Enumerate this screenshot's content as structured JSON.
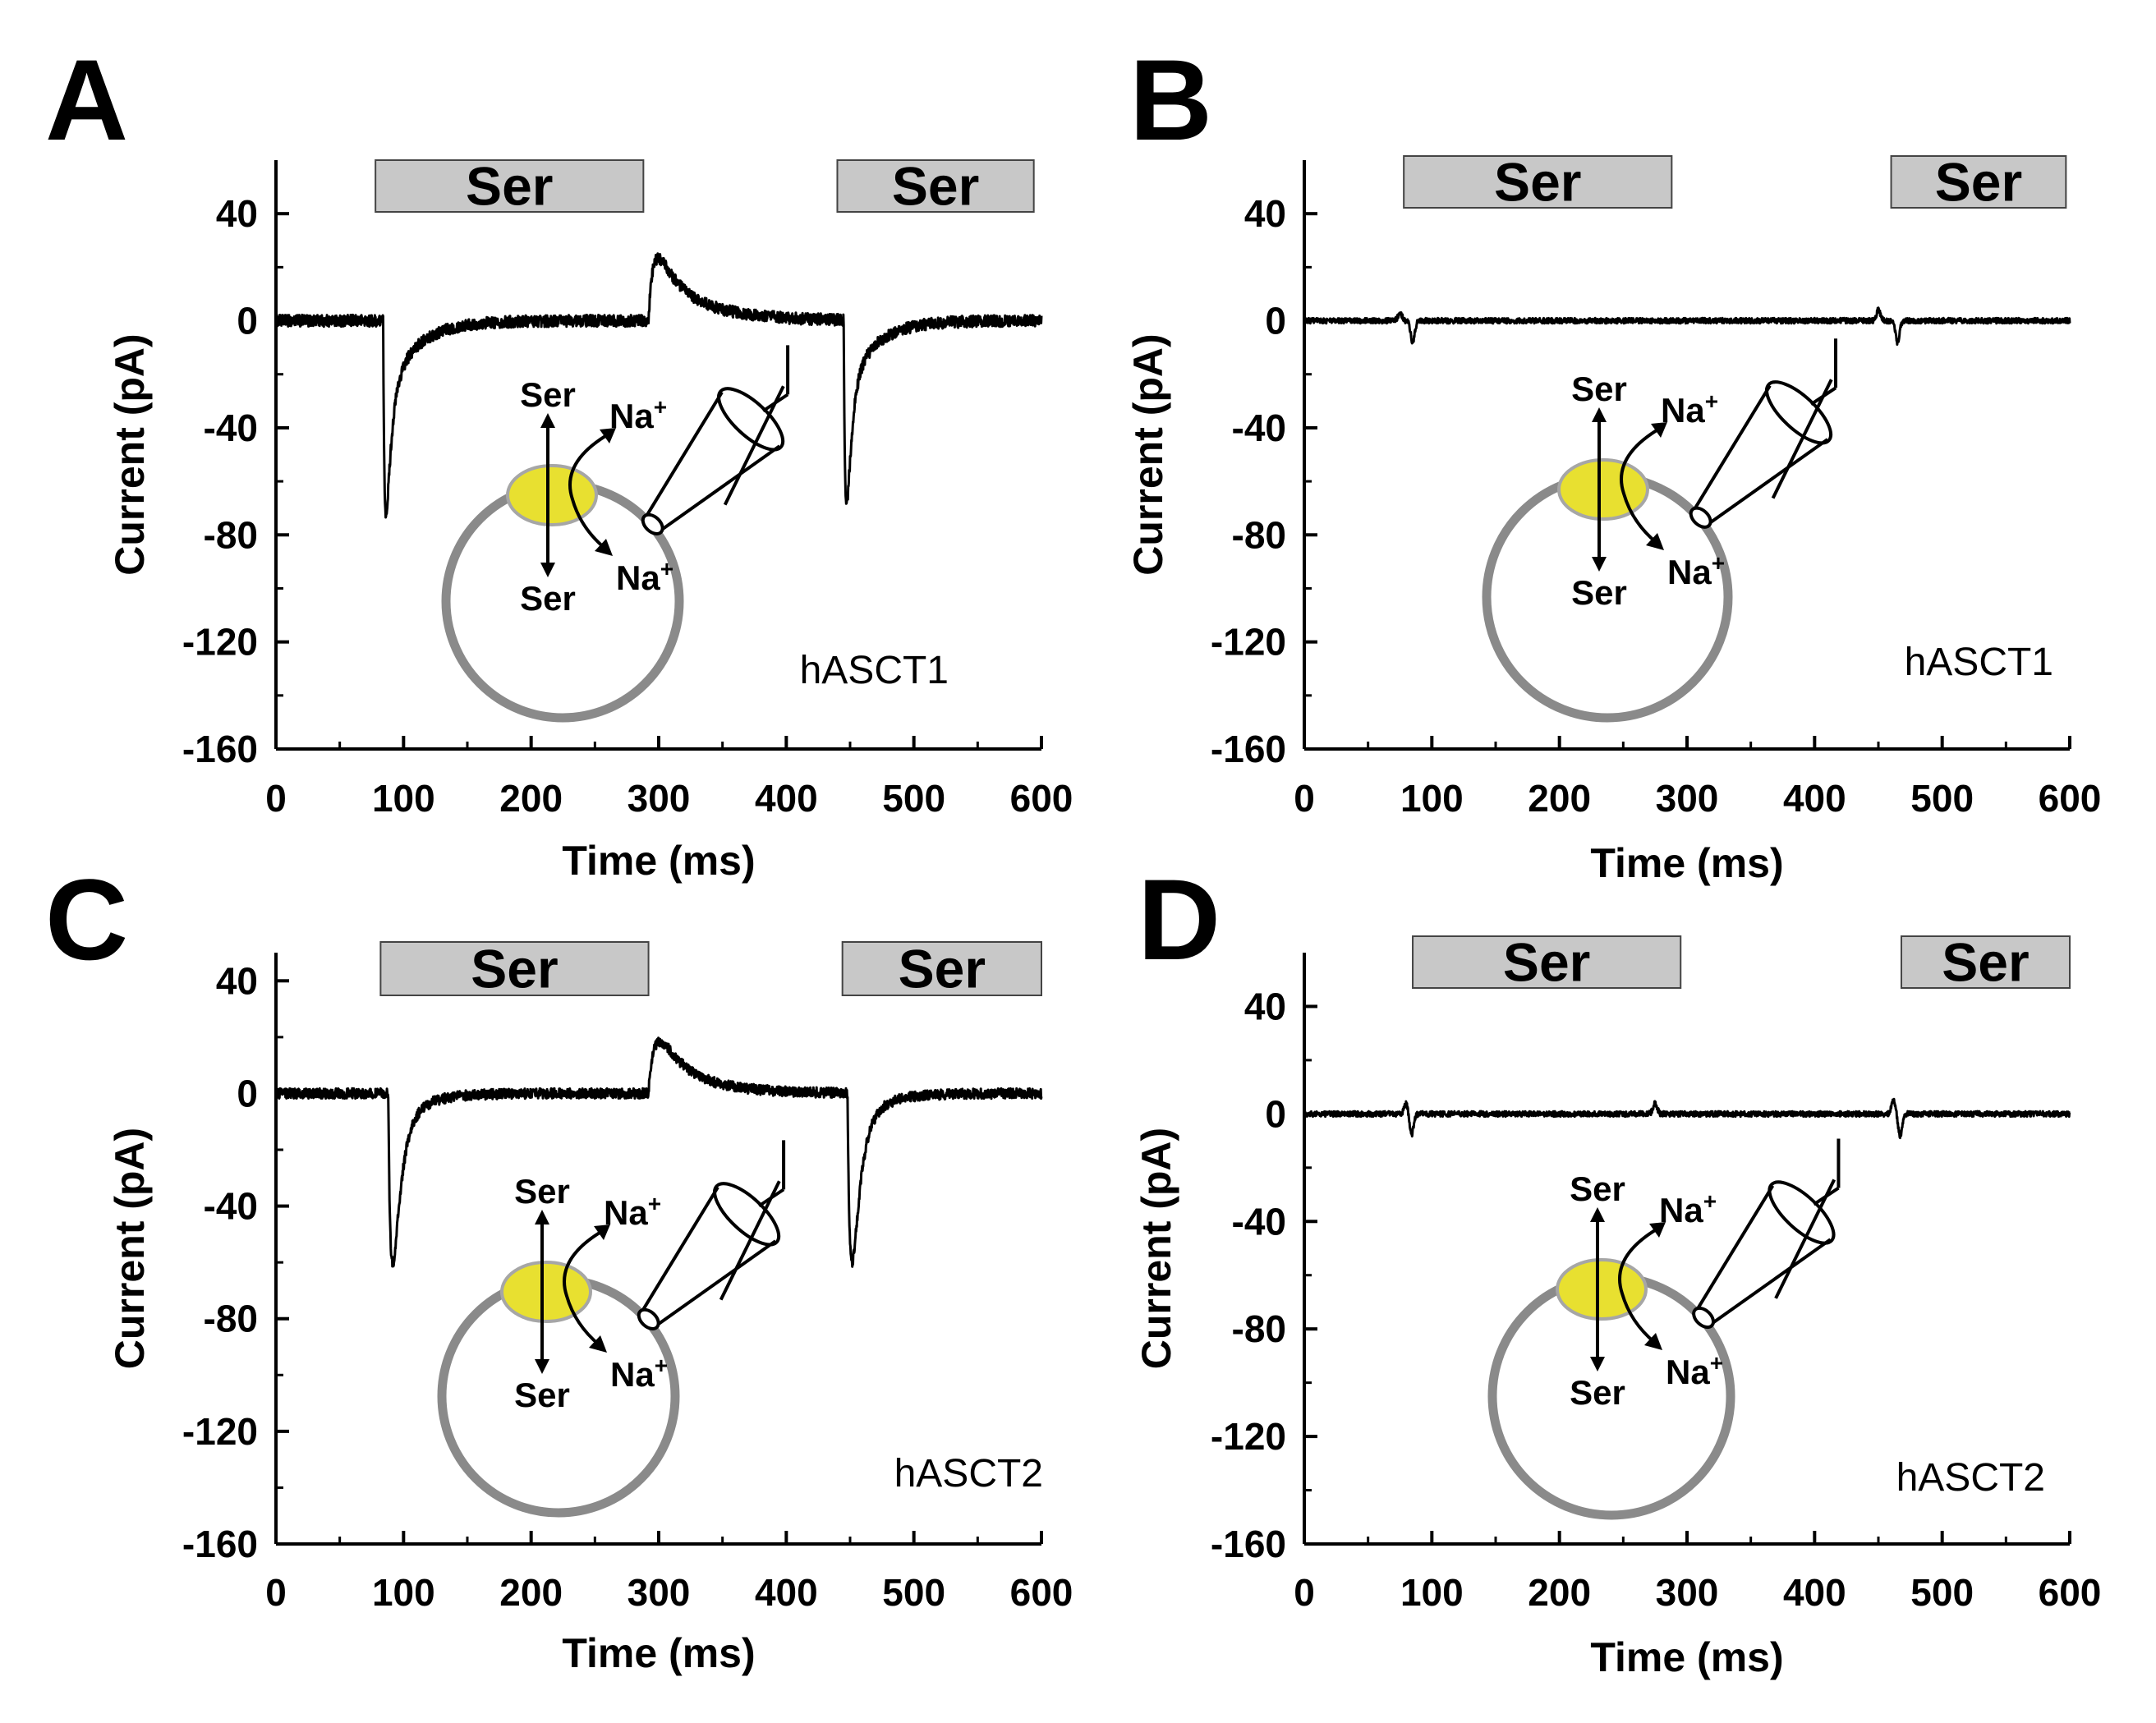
{
  "figure": {
    "colors": {
      "trace": "#000000",
      "bar_fill": "#c8c8c8",
      "bar_stroke": "#444444",
      "cell": "#8a8a8a",
      "transporter": "#e8e030",
      "transporter_stroke": "#a6a6a6",
      "axis": "#000000"
    }
  },
  "chart_data": [
    {
      "panel": "A",
      "type": "line",
      "xlabel": "Time (ms)",
      "ylabel": "Current (pA)",
      "xlim": [
        0,
        600
      ],
      "ylim": [
        -160,
        60
      ],
      "xticks": [
        "0",
        "100",
        "200",
        "300",
        "400",
        "500",
        "600"
      ],
      "yticks": [
        "40",
        "0",
        "-40",
        "-80",
        "-120",
        "-160"
      ],
      "annotation": "hASCT1",
      "bars": [
        {
          "label": "Ser",
          "start": 78,
          "end": 288
        },
        {
          "label": "Ser",
          "start": 440,
          "end": 594
        }
      ],
      "schematic": {
        "ser_out": "Ser",
        "ser_in": "Ser",
        "na": "Na",
        "na_sup": "+"
      },
      "series": [
        {
          "name": "current",
          "baseline": 0,
          "noise": 2.2,
          "events": [
            {
              "type": "inward",
              "t": 84,
              "amp": -125,
              "rise": 1.5,
              "tau1": 4,
              "tau2": 22,
              "frac1": 0.78
            },
            {
              "type": "outward",
              "t": 292,
              "amp": 40,
              "rise": 5,
              "tau1": 12,
              "tau2": 38,
              "frac1": 0.6
            },
            {
              "type": "inward",
              "t": 445,
              "amp": -122,
              "rise": 1.5,
              "tau1": 4,
              "tau2": 22,
              "frac1": 0.8
            }
          ]
        }
      ]
    },
    {
      "panel": "B",
      "type": "line",
      "xlabel": "Time (ms)",
      "ylabel": "Current (pA)",
      "xlim": [
        0,
        600
      ],
      "ylim": [
        -160,
        60
      ],
      "xticks": [
        "0",
        "100",
        "200",
        "300",
        "400",
        "500",
        "600"
      ],
      "yticks": [
        "40",
        "0",
        "-40",
        "-80",
        "-120",
        "-160"
      ],
      "annotation": "hASCT1",
      "bars": [
        {
          "label": "Ser",
          "start": 78,
          "end": 288
        },
        {
          "label": "Ser",
          "start": 460,
          "end": 597
        }
      ],
      "schematic": {
        "ser_out": "Ser",
        "ser_in": "Ser",
        "na": "Na",
        "na_sup": "+"
      },
      "series": [
        {
          "name": "current",
          "baseline": 0,
          "noise": 1.0,
          "events": [
            {
              "type": "blip",
              "t": 75,
              "amp": 3
            },
            {
              "type": "blip",
              "t": 85,
              "amp": -8
            },
            {
              "type": "blip",
              "t": 450,
              "amp": 4
            },
            {
              "type": "blip",
              "t": 465,
              "amp": -8
            }
          ]
        }
      ]
    },
    {
      "panel": "C",
      "type": "line",
      "xlabel": "Time (ms)",
      "ylabel": "Current (pA)",
      "xlim": [
        0,
        600
      ],
      "ylim": [
        -160,
        50
      ],
      "xticks": [
        "0",
        "100",
        "200",
        "300",
        "400",
        "500",
        "600"
      ],
      "yticks": [
        "40",
        "0",
        "-40",
        "-80",
        "-120",
        "-160"
      ],
      "annotation": "hASCT2",
      "bars": [
        {
          "label": "Ser",
          "start": 82,
          "end": 292
        },
        {
          "label": "Ser",
          "start": 444,
          "end": 600
        }
      ],
      "schematic": {
        "ser_out": "Ser",
        "ser_in": "Ser",
        "na": "Na",
        "na_sup": "+"
      },
      "series": [
        {
          "name": "current",
          "baseline": 0,
          "noise": 1.8,
          "events": [
            {
              "type": "inward",
              "t": 88,
              "amp": -130,
              "rise": 3,
              "tau1": 6,
              "tau2": 20,
              "frac1": 0.9
            },
            {
              "type": "outward",
              "t": 292,
              "amp": 33,
              "rise": 6,
              "tau1": 14,
              "tau2": 35,
              "frac1": 0.6
            },
            {
              "type": "inward",
              "t": 448,
              "amp": -130,
              "rise": 3,
              "tau1": 6,
              "tau2": 20,
              "frac1": 0.9
            }
          ]
        }
      ]
    },
    {
      "panel": "D",
      "type": "line",
      "xlabel": "Time (ms)",
      "ylabel": "Current (pA)",
      "xlim": [
        0,
        600
      ],
      "ylim": [
        -160,
        60
      ],
      "xticks": [
        "0",
        "100",
        "200",
        "300",
        "400",
        "500",
        "600"
      ],
      "yticks": [
        "40",
        "0",
        "-40",
        "-80",
        "-120",
        "-160"
      ],
      "annotation": "hASCT2",
      "bars": [
        {
          "label": "Ser",
          "start": 85,
          "end": 295
        },
        {
          "label": "Ser",
          "start": 468,
          "end": 600
        }
      ],
      "schematic": {
        "ser_out": "Ser",
        "ser_in": "Ser",
        "na": "Na",
        "na_sup": "+"
      },
      "series": [
        {
          "name": "current",
          "baseline": 0,
          "noise": 1.0,
          "events": [
            {
              "type": "blip",
              "t": 80,
              "amp": 4
            },
            {
              "type": "blip",
              "t": 84,
              "amp": -8
            },
            {
              "type": "blip",
              "t": 275,
              "amp": 4
            },
            {
              "type": "blip",
              "t": 462,
              "amp": 5
            },
            {
              "type": "blip",
              "t": 467,
              "amp": -8
            }
          ]
        }
      ]
    }
  ]
}
